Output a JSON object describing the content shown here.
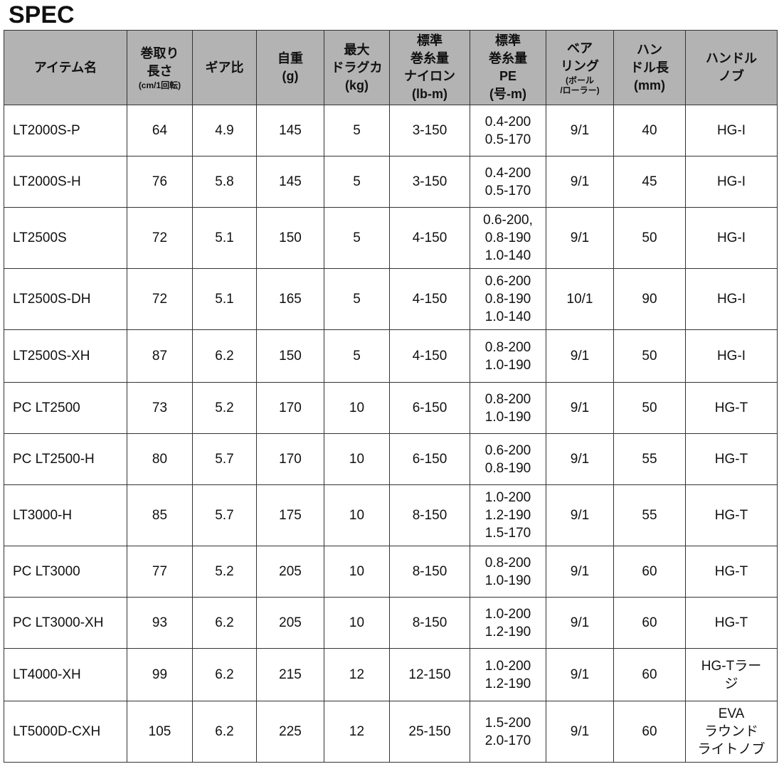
{
  "title": "SPEC",
  "headers": [
    {
      "main": "アイテム名",
      "sub": ""
    },
    {
      "main": "巻取り\n長さ",
      "sub": "(cm/1回転)"
    },
    {
      "main": "ギア比",
      "sub": ""
    },
    {
      "main": "自重\n(g)",
      "sub": ""
    },
    {
      "main": "最大\nドラグカ\n(kg)",
      "sub": ""
    },
    {
      "main": "標準\n巻糸量\nナイロン\n(lb-m)",
      "sub": ""
    },
    {
      "main": "標準\n巻糸量\nPE\n(号-m)",
      "sub": ""
    },
    {
      "main": "ベア\nリング",
      "sub": "(ボール\n/ローラー)"
    },
    {
      "main": "ハン\nドル長\n(mm)",
      "sub": ""
    },
    {
      "main": "ハンドル\nノブ",
      "sub": ""
    }
  ],
  "rows": [
    [
      "LT2000S-P",
      "64",
      "4.9",
      "145",
      "5",
      "3-150",
      "0.4-200\n0.5-170",
      "9/1",
      "40",
      "HG-I"
    ],
    [
      "LT2000S-H",
      "76",
      "5.8",
      "145",
      "5",
      "3-150",
      "0.4-200\n0.5-170",
      "9/1",
      "45",
      "HG-I"
    ],
    [
      "LT2500S",
      "72",
      "5.1",
      "150",
      "5",
      "4-150",
      "0.6-200,\n0.8-190\n1.0-140",
      "9/1",
      "50",
      "HG-I"
    ],
    [
      "LT2500S-DH",
      "72",
      "5.1",
      "165",
      "5",
      "4-150",
      "0.6-200\n0.8-190\n1.0-140",
      "10/1",
      "90",
      "HG-I"
    ],
    [
      "LT2500S-XH",
      "87",
      "6.2",
      "150",
      "5",
      "4-150",
      "0.8-200\n1.0-190",
      "9/1",
      "50",
      "HG-I"
    ],
    [
      "PC LT2500",
      "73",
      "5.2",
      "170",
      "10",
      "6-150",
      "0.8-200\n1.0-190",
      "9/1",
      "50",
      "HG-T"
    ],
    [
      "PC LT2500-H",
      "80",
      "5.7",
      "170",
      "10",
      "6-150",
      "0.6-200\n0.8-190",
      "9/1",
      "55",
      "HG-T"
    ],
    [
      "LT3000-H",
      "85",
      "5.7",
      "175",
      "10",
      "8-150",
      "1.0-200\n1.2-190\n1.5-170",
      "9/1",
      "55",
      "HG-T"
    ],
    [
      "PC LT3000",
      "77",
      "5.2",
      "205",
      "10",
      "8-150",
      "0.8-200\n1.0-190",
      "9/1",
      "60",
      "HG-T"
    ],
    [
      "PC LT3000-XH",
      "93",
      "6.2",
      "205",
      "10",
      "8-150",
      "1.0-200\n1.2-190",
      "9/1",
      "60",
      "HG-T"
    ],
    [
      "LT4000-XH",
      "99",
      "6.2",
      "215",
      "12",
      "12-150",
      "1.0-200\n1.2-190",
      "9/1",
      "60",
      "HG-Tラー\nジ"
    ],
    [
      "LT5000D-CXH",
      "105",
      "6.2",
      "225",
      "12",
      "25-150",
      "1.5-200\n2.0-170",
      "9/1",
      "60",
      "EVA\nラウンド\nライトノブ"
    ]
  ]
}
